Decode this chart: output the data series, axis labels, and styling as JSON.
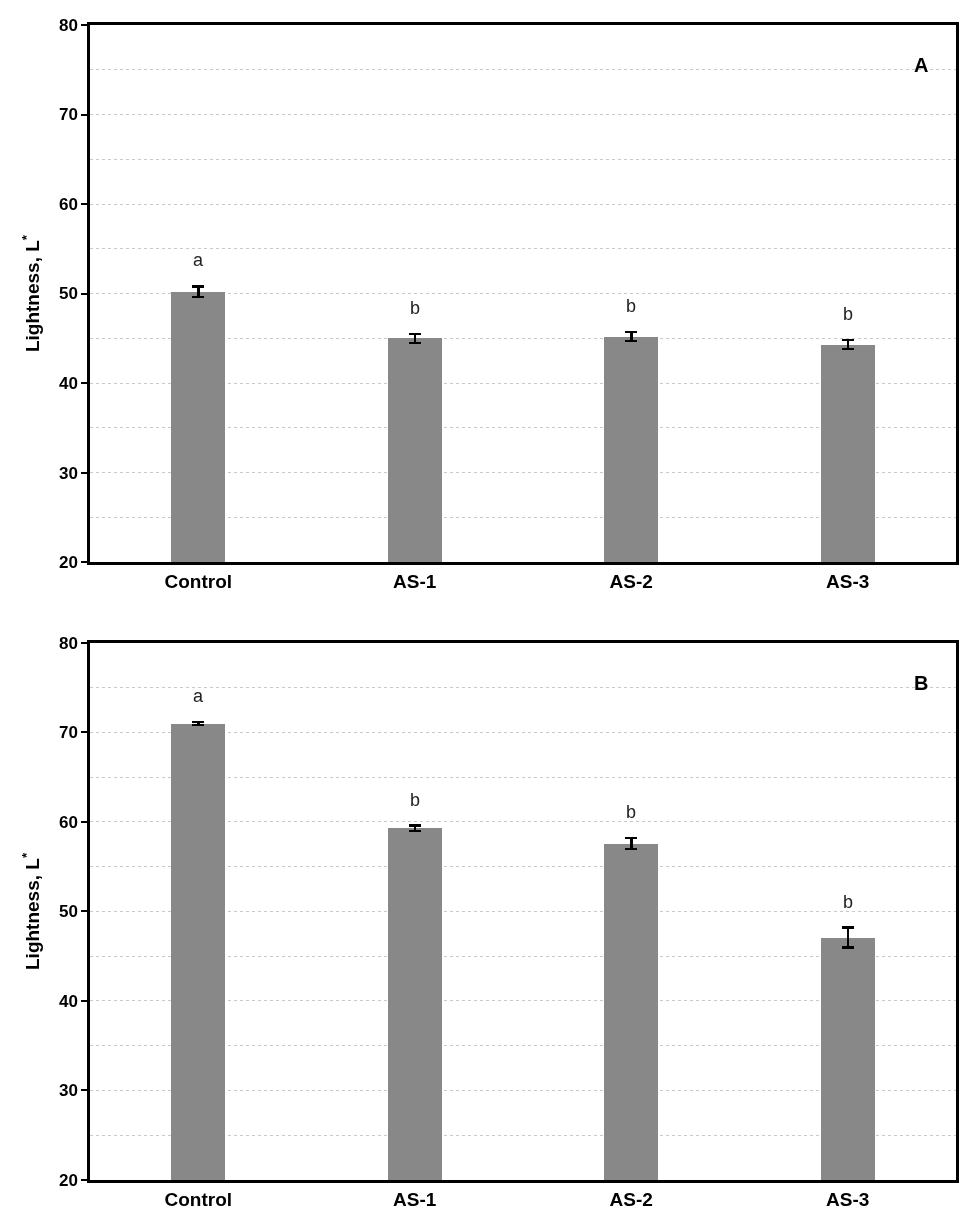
{
  "chart_data": [
    {
      "type": "bar",
      "categories": [
        "Control",
        "AS-1",
        "AS-2",
        "AS-3"
      ],
      "values": [
        50.2,
        45.0,
        45.2,
        44.3
      ],
      "errors": [
        0.6,
        0.5,
        0.5,
        0.5
      ],
      "color": "#888888",
      "ylabel": "Lightness, L$^{*}$",
      "ylim": [
        20,
        80
      ],
      "yticks": [
        20,
        30,
        40,
        50,
        60,
        70,
        80
      ],
      "grid": "y",
      "annotations": [
        "A",
        "a",
        "b",
        "b",
        "b"
      ]
    },
    {
      "type": "bar",
      "categories": [
        "Control",
        "AS-1",
        "AS-2",
        "AS-3"
      ],
      "values": [
        71.0,
        59.3,
        57.6,
        47.1
      ],
      "errors": [
        0.15,
        0.3,
        0.6,
        1.1
      ],
      "color": "#888888",
      "ylabel": "Lightness, L$^{*}$",
      "ylim": [
        20,
        80
      ],
      "yticks": [
        20,
        30,
        40,
        50,
        60,
        70,
        80
      ],
      "grid": "y",
      "annotations": [
        "B",
        "a",
        "b",
        "b",
        "b"
      ]
    }
  ]
}
